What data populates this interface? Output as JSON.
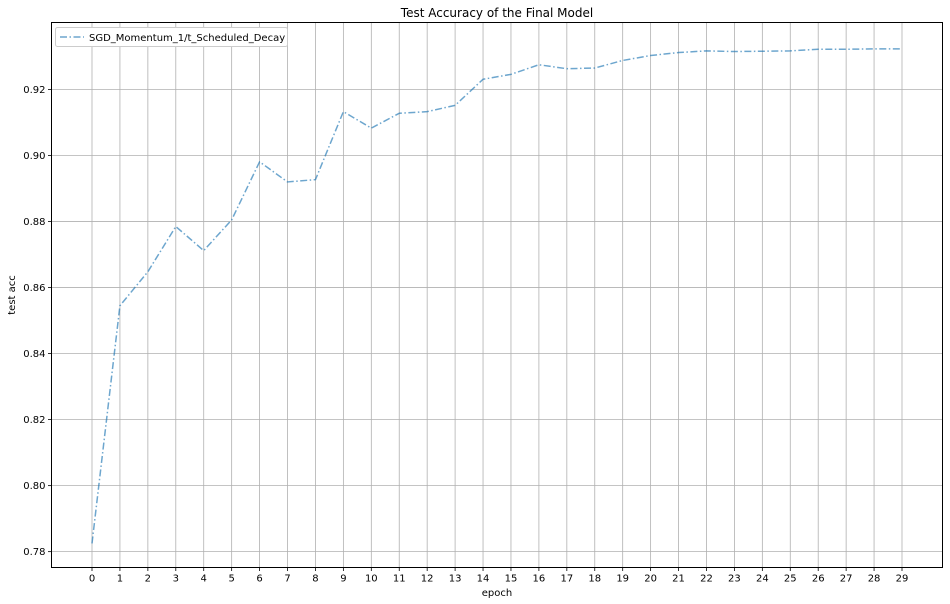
{
  "chart_data": {
    "type": "line",
    "title": "Test Accuracy of the Final Model",
    "xlabel": "epoch",
    "ylabel": "test acc",
    "x": [
      0,
      1,
      2,
      3,
      4,
      5,
      6,
      7,
      8,
      9,
      10,
      11,
      12,
      13,
      14,
      15,
      16,
      17,
      18,
      19,
      20,
      21,
      22,
      23,
      24,
      25,
      26,
      27,
      28,
      29
    ],
    "x_ticks": [
      "0",
      "1",
      "2",
      "3",
      "4",
      "5",
      "6",
      "7",
      "8",
      "9",
      "10",
      "11",
      "12",
      "13",
      "14",
      "15",
      "16",
      "17",
      "18",
      "19",
      "20",
      "21",
      "22",
      "23",
      "24",
      "25",
      "26",
      "27",
      "28",
      "29"
    ],
    "y_ticks": [
      "0.78",
      "0.80",
      "0.82",
      "0.84",
      "0.86",
      "0.88",
      "0.90",
      "0.92"
    ],
    "xlim": [
      -1.45,
      30.45
    ],
    "ylim": [
      0.7752,
      0.9403
    ],
    "grid": true,
    "legend_position": "upper-left",
    "series": [
      {
        "name": "SGD_Momentum_1/t_Scheduled_Decay",
        "color": "#1f77b4",
        "line_style": "dash-dot",
        "values": [
          0.7825,
          0.8545,
          0.8648,
          0.8785,
          0.8712,
          0.8805,
          0.8981,
          0.892,
          0.8927,
          0.9133,
          0.9083,
          0.9128,
          0.9133,
          0.9152,
          0.9231,
          0.9246,
          0.9275,
          0.9263,
          0.9265,
          0.9288,
          0.9303,
          0.9312,
          0.9317,
          0.9315,
          0.9316,
          0.9317,
          0.9322,
          0.9322,
          0.9323,
          0.9323
        ]
      }
    ]
  }
}
